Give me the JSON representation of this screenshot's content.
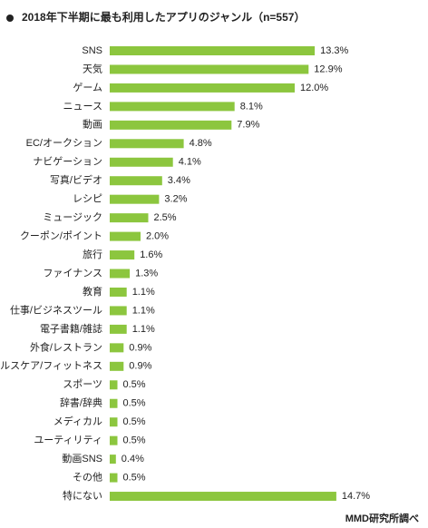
{
  "chart_data": {
    "type": "bar",
    "orientation": "horizontal",
    "title": "2018年下半期に最も利用したアプリのジャンル（n=557）",
    "source": "MMD研究所調べ",
    "color": "#8cc63e",
    "categories": [
      "SNS",
      "天気",
      "ゲーム",
      "ニュース",
      "動画",
      "EC/オークション",
      "ナビゲーション",
      "写真/ビデオ",
      "レシピ",
      "ミュージック",
      "クーポン/ポイント",
      "旅行",
      "ファイナンス",
      "教育",
      "仕事/ビジネスツール",
      "電子書籍/雑誌",
      "外食/レストラン",
      "ヘルスケア/フィットネス",
      "スポーツ",
      "辞書/辞典",
      "メディカル",
      "ユーティリティ",
      "動画SNS",
      "その他",
      "特にない"
    ],
    "values": [
      13.3,
      12.9,
      12,
      8.1,
      7.9,
      4.8,
      4.1,
      3.4,
      3.2,
      2.5,
      2,
      1.6,
      1.3,
      1.1,
      1.1,
      1.1,
      0.9,
      0.9,
      0.5,
      0.5,
      0.5,
      0.5,
      0.4,
      0.5,
      14.7
    ],
    "value_labels": [
      "13.3%",
      "12.9%",
      "12.0%",
      "8.1%",
      "7.9%",
      "4.8%",
      "4.1%",
      "3.4%",
      "3.2%",
      "2.5%",
      "2.0%",
      "1.6%",
      "1.3%",
      "1.1%",
      "1.1%",
      "1.1%",
      "0.9%",
      "0.9%",
      "0.5%",
      "0.5%",
      "0.5%",
      "0.5%",
      "0.4%",
      "0.5%",
      "14.7%"
    ]
  }
}
